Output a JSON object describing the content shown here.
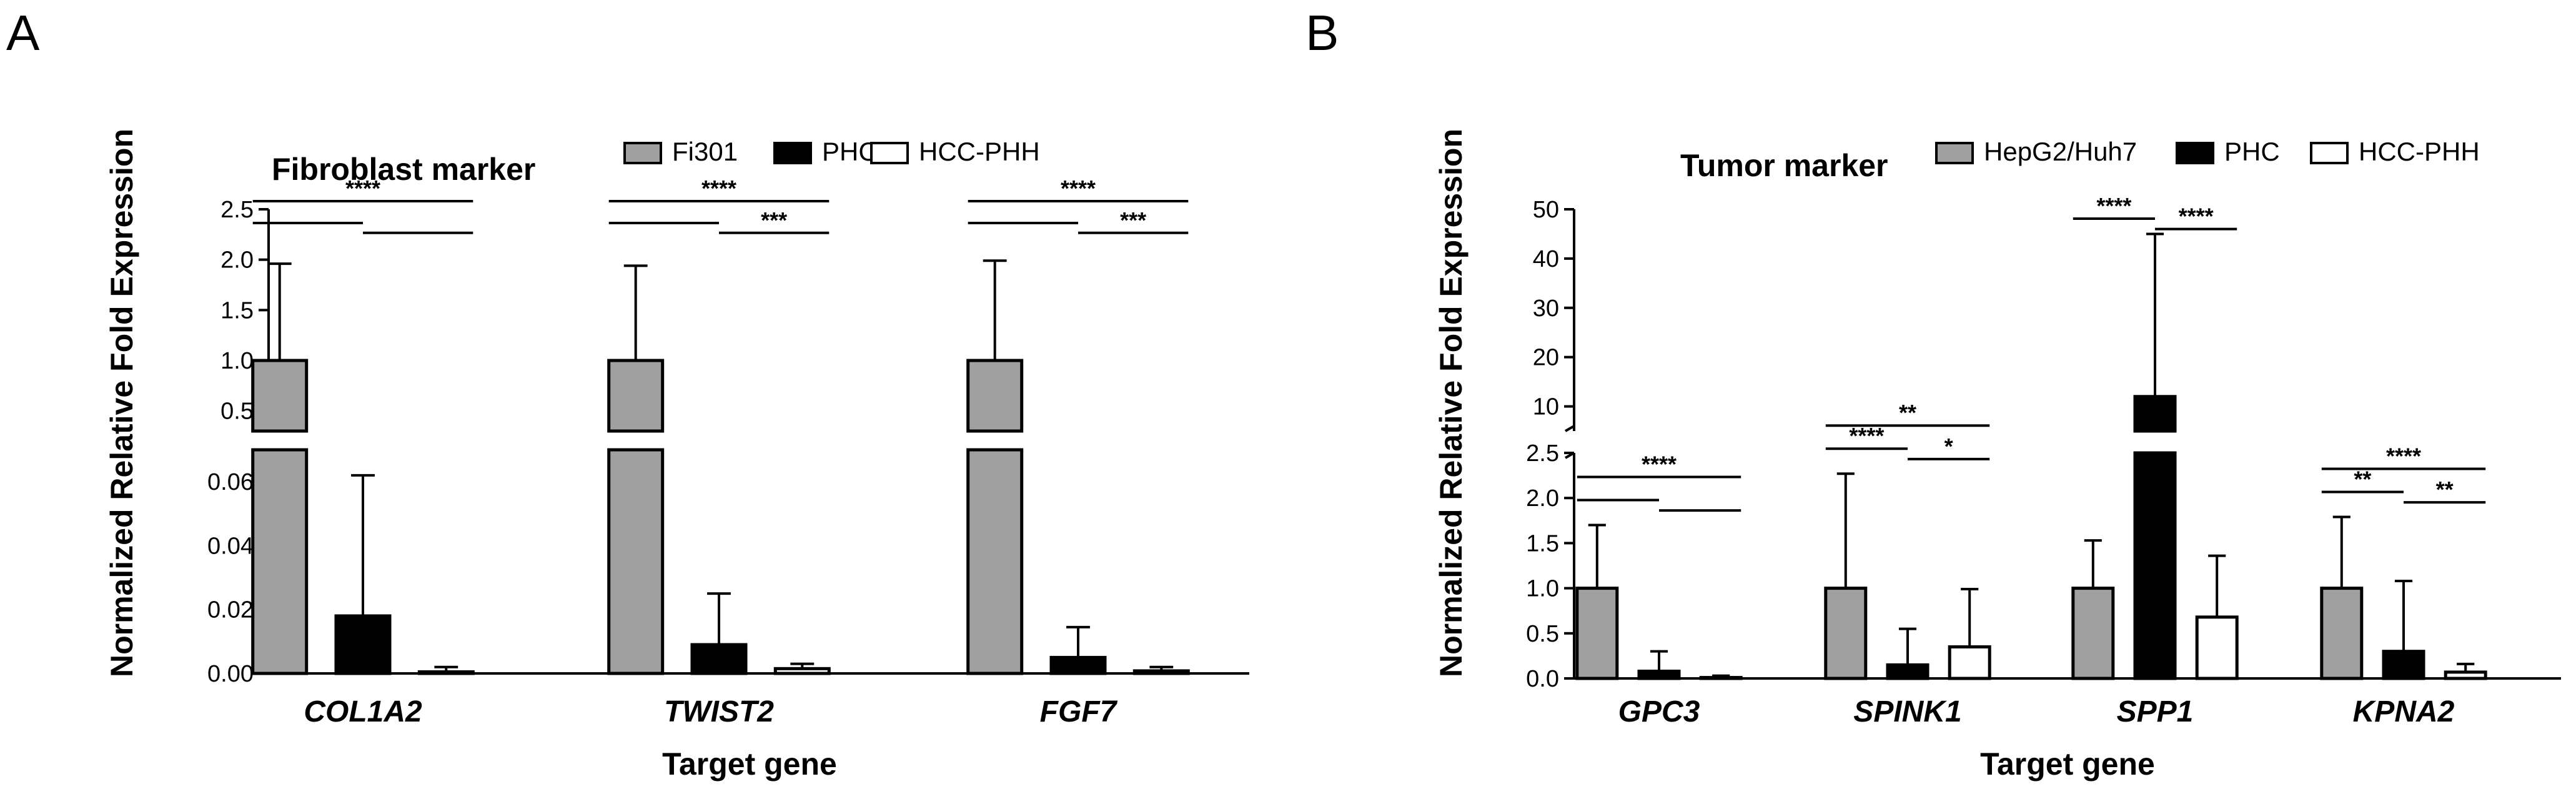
{
  "chart_data": [
    {
      "panel": "A",
      "type": "bar",
      "title": "Fibroblast marker",
      "xlabel": "Target gene",
      "ylabel": "Normalized Relative Fold Expression",
      "categories": [
        "COL1A2",
        "TWIST2",
        "FGF7"
      ],
      "series": [
        {
          "name": "Fi301",
          "color": "#a0a0a0",
          "values": [
            1.0,
            1.0,
            1.0
          ],
          "errors": [
            0.96,
            0.94,
            0.99
          ]
        },
        {
          "name": "PHC",
          "color": "#000000",
          "values": [
            0.018,
            0.009,
            0.005
          ],
          "errors": [
            0.044,
            0.016,
            0.0095
          ]
        },
        {
          "name": "HCC-PHH",
          "color": "#ffffff",
          "values": [
            0.0005,
            0.0015,
            0.0008
          ],
          "errors": [
            0.0015,
            0.0015,
            0.0012
          ]
        }
      ],
      "y_axis": {
        "broken": true,
        "lower_segment": {
          "range": [
            0,
            0.07
          ],
          "ticks": [
            "0.00",
            "0.02",
            "0.04",
            "0.06"
          ]
        },
        "upper_segment": {
          "range": [
            0.3,
            2.5
          ],
          "ticks": [
            "0.5",
            "1.0",
            "1.5",
            "2.0",
            "2.5"
          ]
        }
      },
      "significance": [
        {
          "category": 0,
          "from": 0,
          "to": 2,
          "label": "****"
        },
        {
          "category": 0,
          "from": 0,
          "to": 1,
          "label": ""
        },
        {
          "category": 0,
          "from": 1,
          "to": 2,
          "label": ""
        },
        {
          "category": 1,
          "from": 0,
          "to": 2,
          "label": "****"
        },
        {
          "category": 1,
          "from": 0,
          "to": 1,
          "label": ""
        },
        {
          "category": 1,
          "from": 1,
          "to": 2,
          "label": "***"
        },
        {
          "category": 2,
          "from": 0,
          "to": 2,
          "label": "****"
        },
        {
          "category": 2,
          "from": 0,
          "to": 1,
          "label": ""
        },
        {
          "category": 2,
          "from": 1,
          "to": 2,
          "label": "***"
        }
      ]
    },
    {
      "panel": "B",
      "type": "bar",
      "title": "Tumor marker",
      "xlabel": "Target gene",
      "ylabel": "Normalized Relative Fold Expression",
      "categories": [
        "GPC3",
        "SPINK1",
        "SPP1",
        "KPNA2"
      ],
      "series": [
        {
          "name": "HepG2/Huh7",
          "color": "#a0a0a0",
          "values": [
            1.0,
            1.0,
            1.0,
            1.0
          ],
          "errors": [
            0.7,
            1.27,
            0.53,
            0.79
          ]
        },
        {
          "name": "PHC",
          "color": "#000000",
          "values": [
            0.08,
            0.15,
            12.0,
            0.3
          ],
          "errors": [
            0.22,
            0.4,
            33.0,
            0.78
          ]
        },
        {
          "name": "HCC-PHH",
          "color": "#ffffff",
          "values": [
            0.01,
            0.35,
            0.68,
            0.07
          ],
          "errors": [
            0.02,
            0.64,
            0.68,
            0.09
          ]
        }
      ],
      "y_axis": {
        "broken": true,
        "lower_segment": {
          "range": [
            0,
            2.5
          ],
          "ticks": [
            "0.0",
            "0.5",
            "1.0",
            "1.5",
            "2.0",
            "2.5"
          ]
        },
        "upper_segment": {
          "range": [
            5,
            50
          ],
          "ticks": [
            "10",
            "20",
            "30",
            "40",
            "50"
          ]
        }
      },
      "significance": [
        {
          "category": 0,
          "from": 0,
          "to": 2,
          "label": "****"
        },
        {
          "category": 0,
          "from": 0,
          "to": 1,
          "label": ""
        },
        {
          "category": 0,
          "from": 1,
          "to": 2,
          "label": ""
        },
        {
          "category": 1,
          "from": 0,
          "to": 2,
          "label": "**"
        },
        {
          "category": 1,
          "from": 0,
          "to": 1,
          "label": "****"
        },
        {
          "category": 1,
          "from": 1,
          "to": 2,
          "label": "*"
        },
        {
          "category": 2,
          "from": 0,
          "to": 1,
          "label": "****"
        },
        {
          "category": 2,
          "from": 1,
          "to": 2,
          "label": "****"
        },
        {
          "category": 3,
          "from": 0,
          "to": 2,
          "label": "****"
        },
        {
          "category": 3,
          "from": 0,
          "to": 1,
          "label": "**"
        },
        {
          "category": 3,
          "from": 1,
          "to": 2,
          "label": "**"
        }
      ]
    }
  ]
}
